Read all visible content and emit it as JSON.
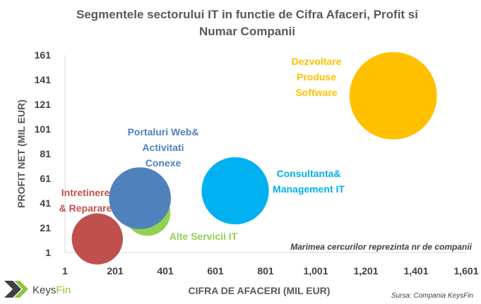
{
  "chart_data": {
    "type": "bubble",
    "title": "Segmentele sectorului IT in functie de Cifra Afaceri, Profit si Numar Companii",
    "title_lines": [
      "Segmentele sectorului IT in functie de Cifra Afaceri, Profit si",
      "Numar Companii"
    ],
    "xlabel": "CIFRA DE AFACERI (MIL EUR)",
    "ylabel": "PROFIT NET (MIL EUR)",
    "xlim": [
      1,
      1601
    ],
    "ylim": [
      1,
      161
    ],
    "x_ticks": [
      "1",
      "201",
      "401",
      "601",
      "801",
      "1,001",
      "1,201",
      "1,401",
      "1,601"
    ],
    "y_ticks": [
      "1",
      "21",
      "41",
      "61",
      "81",
      "101",
      "121",
      "141",
      "161"
    ],
    "grid": false,
    "series": [
      {
        "name": "Intretinere & Reparare",
        "label_lines": [
          "Intretinere",
          "& Reparare"
        ],
        "x": 130,
        "y": 12,
        "size": 38,
        "color": "#C0504D"
      },
      {
        "name": "Alte Servicii IT",
        "label_lines": [
          "Alte Servicii IT"
        ],
        "x": 330,
        "y": 33,
        "size": 34,
        "color": "#92D050"
      },
      {
        "name": "Portaluri Web& Activitati Conexe",
        "label_lines": [
          "Portaluri Web&",
          "Activitati",
          "Conexe"
        ],
        "x": 300,
        "y": 45,
        "size": 46,
        "color": "#4F81BD"
      },
      {
        "name": "Consultanta& Management IT",
        "label_lines": [
          "Consultanta&",
          "Management IT"
        ],
        "x": 680,
        "y": 51,
        "size": 50,
        "color": "#00B0F0"
      },
      {
        "name": "Dezvoltare Produse Software",
        "label_lines": [
          "Dezvoltare",
          "Produse",
          "Software"
        ],
        "x": 1310,
        "y": 128,
        "size": 65,
        "color": "#FFC000"
      }
    ],
    "annotation": "Marimea cercurilor reprezinta nr de companii"
  },
  "footer": {
    "source": "Sursa: Compania KeysFin",
    "logo_part1": "Keys",
    "logo_part2": "Fin"
  },
  "colors": {
    "logo_dark": "#404040",
    "logo_green": "#8DC63F"
  }
}
